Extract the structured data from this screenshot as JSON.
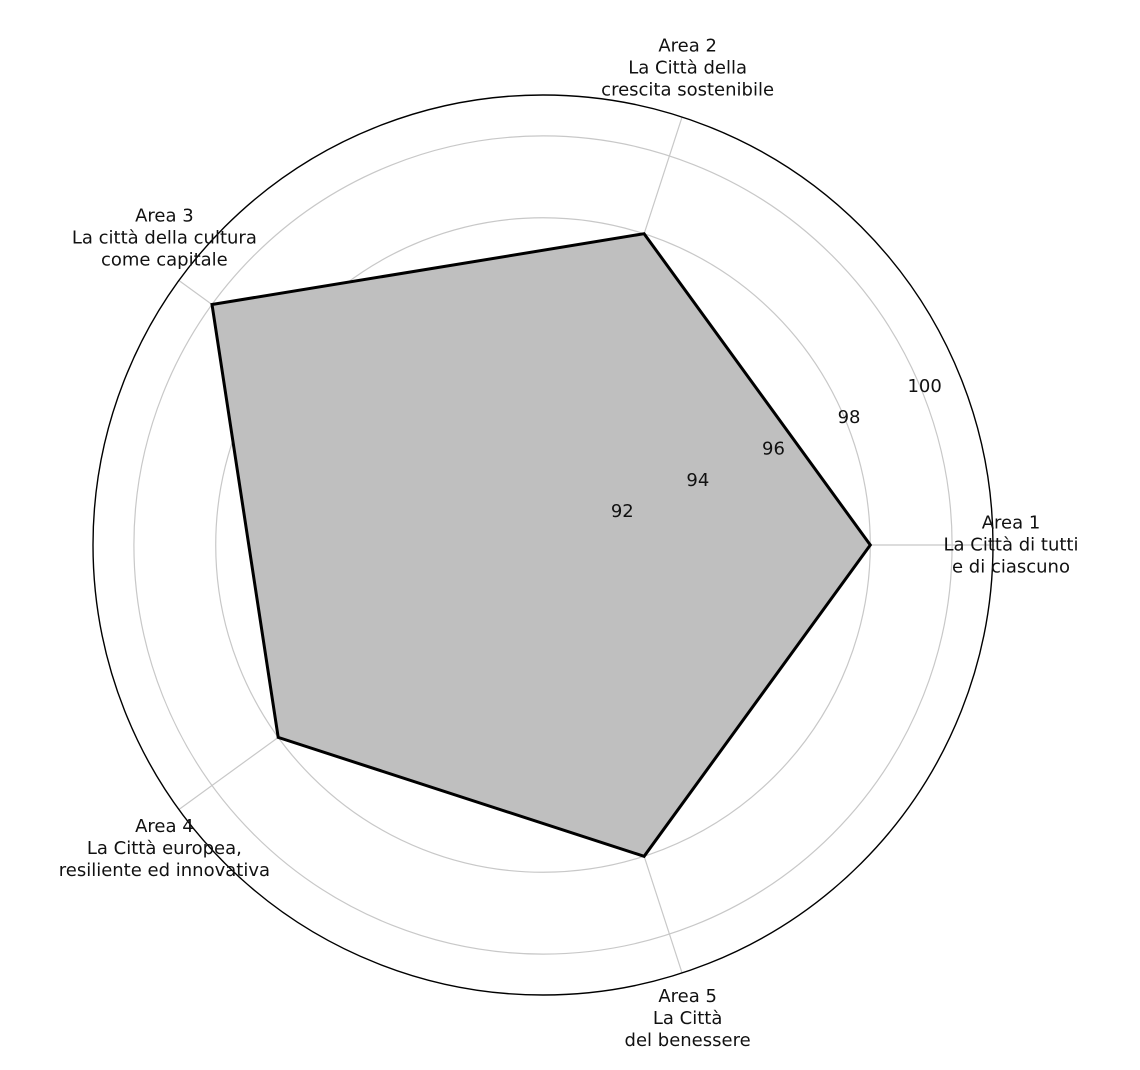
{
  "chart_data": {
    "type": "radar",
    "title": "",
    "categories": [
      [
        "Area 1",
        "La Città di tutti",
        "e di ciascuno"
      ],
      [
        "Area 2",
        "La Città della",
        "crescita sostenibile"
      ],
      [
        "Area 3",
        "La città della cultura",
        "come capitale"
      ],
      [
        "Area 4",
        "La Città europea,",
        "resiliente ed innovativa"
      ],
      [
        "Area 5",
        "La Città",
        "del benessere"
      ]
    ],
    "series": [
      {
        "values": [
          98,
          98,
          100,
          98,
          98
        ]
      }
    ],
    "rlim": [
      90,
      101
    ],
    "ticks": [
      92,
      94,
      96,
      98,
      100
    ],
    "grid": true,
    "colors": {
      "fill": "#bfbfbf",
      "line": "#000000",
      "grid": "#c8c8c8",
      "outer": "#000000"
    }
  }
}
